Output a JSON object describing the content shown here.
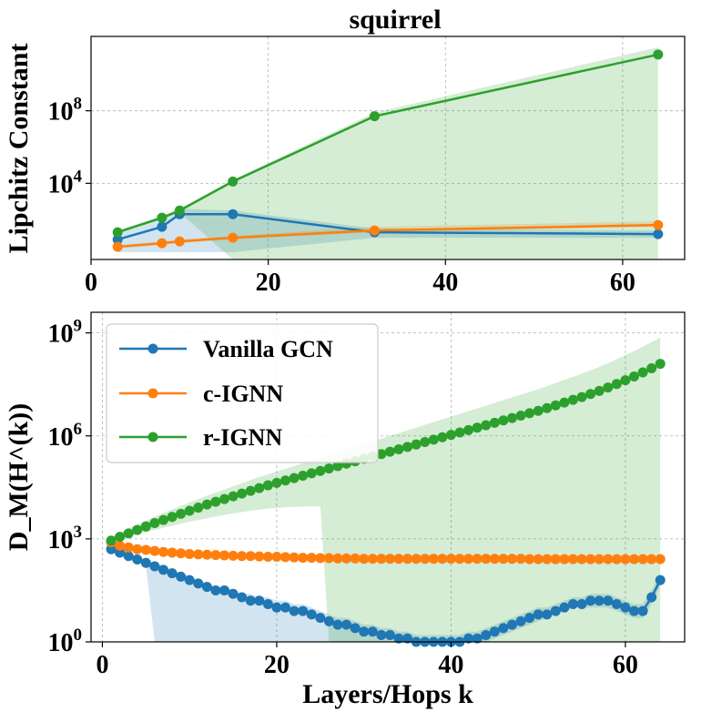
{
  "chart_data": [
    {
      "type": "line",
      "title": "squirrel",
      "xlabel": "",
      "ylabel": "Lipchitz Constant",
      "yscale": "log",
      "xlim": [
        0,
        67
      ],
      "ylim_log10": [
        -0.2,
        12.1
      ],
      "xticks": [
        0,
        20,
        40,
        60
      ],
      "xtick_labels": [
        "0",
        "20",
        "40",
        "60"
      ],
      "yticks_log10": [
        4,
        8
      ],
      "ytick_labels": [
        "10^4",
        "10^8"
      ],
      "grid": true,
      "series": [
        {
          "name": "Vanilla GCN",
          "color": "#1f77b4",
          "x": [
            3,
            8,
            10,
            16,
            32,
            64
          ],
          "log10_values": [
            0.9,
            1.6,
            2.3,
            2.3,
            1.3,
            1.2
          ],
          "band_log10": [
            [
              0.2,
              1.2
            ],
            [
              0.2,
              2.0
            ],
            [
              0.2,
              2.6
            ],
            [
              0.2,
              2.5
            ],
            [
              1.0,
              1.5
            ],
            [
              1.0,
              1.4
            ]
          ]
        },
        {
          "name": "c-IGNN",
          "color": "#ff7f0e",
          "x": [
            3,
            8,
            10,
            16,
            32,
            64
          ],
          "log10_values": [
            0.5,
            0.7,
            0.8,
            1.0,
            1.4,
            1.7
          ],
          "band_log10": [
            [
              0.4,
              0.6
            ],
            [
              0.6,
              0.8
            ],
            [
              0.7,
              0.9
            ],
            [
              0.9,
              1.1
            ],
            [
              1.3,
              1.6
            ],
            [
              1.6,
              1.9
            ]
          ]
        },
        {
          "name": "r-IGNN",
          "color": "#2ca02c",
          "x": [
            3,
            8,
            10,
            16,
            32,
            64
          ],
          "log10_values": [
            1.3,
            2.1,
            2.5,
            4.1,
            7.7,
            11.1
          ],
          "band_log10": [
            [
              1.2,
              1.4
            ],
            [
              2.0,
              2.2
            ],
            [
              2.4,
              2.6
            ],
            [
              -0.2,
              4.2
            ],
            [
              -0.2,
              7.9
            ],
            [
              -0.2,
              11.5
            ]
          ]
        }
      ]
    },
    {
      "type": "line",
      "title": "",
      "xlabel": "Layers/Hops k",
      "ylabel": "D_M(H^(k))",
      "yscale": "log",
      "xlim": [
        -1.3,
        66.8
      ],
      "ylim_log10": [
        0,
        9.6
      ],
      "xticks": [
        0,
        20,
        40,
        60
      ],
      "xtick_labels": [
        "0",
        "20",
        "40",
        "60"
      ],
      "yticks_log10": [
        0,
        3,
        6,
        9
      ],
      "ytick_labels": [
        "10^0",
        "10^3",
        "10^6",
        "10^9"
      ],
      "grid": true,
      "legend": {
        "position": "upper-left",
        "entries": [
          "Vanilla GCN",
          "c-IGNN",
          "r-IGNN"
        ]
      },
      "series": [
        {
          "name": "Vanilla GCN",
          "color": "#1f77b4",
          "x_range": [
            1,
            64
          ],
          "log10_values": [
            2.7,
            2.6,
            2.5,
            2.4,
            2.3,
            2.2,
            2.1,
            2.0,
            1.9,
            1.8,
            1.7,
            1.6,
            1.5,
            1.5,
            1.4,
            1.3,
            1.2,
            1.2,
            1.1,
            1.0,
            1.0,
            0.9,
            0.9,
            0.8,
            0.7,
            0.6,
            0.5,
            0.5,
            0.4,
            0.3,
            0.3,
            0.2,
            0.2,
            0.1,
            0.1,
            0.0,
            0.0,
            0.0,
            0.0,
            0.0,
            0.0,
            0.1,
            0.1,
            0.2,
            0.3,
            0.4,
            0.5,
            0.6,
            0.7,
            0.8,
            0.8,
            0.9,
            1.0,
            1.1,
            1.1,
            1.2,
            1.2,
            1.2,
            1.1,
            1.0,
            0.9,
            0.9,
            1.3,
            1.8
          ],
          "band_lower_log10": [
            2.6,
            2.5,
            2.4,
            2.3,
            2.2,
            0.0,
            0.0,
            0.0,
            0.0,
            0.0,
            0.0,
            0.0,
            0.0,
            0.0,
            0.0,
            0.0,
            0.0,
            0.0,
            0.0,
            0.0,
            0.0,
            0.0,
            0.0,
            0.0,
            0.0,
            0.0,
            0.0,
            0.0,
            0.0,
            0.0,
            0.0,
            0.0,
            0.0,
            0.0,
            0.0,
            0.0,
            0.0,
            0.0,
            0.0,
            0.0,
            0.0,
            0.0,
            0.0,
            0.0,
            0.1,
            0.2,
            0.3,
            0.4,
            0.5,
            0.6,
            0.7,
            0.8,
            0.9,
            1.0,
            1.0,
            1.0,
            1.0,
            1.0,
            0.9,
            0.8,
            0.7,
            0.7,
            1.1,
            1.6
          ],
          "band_upper_log10": [
            2.8,
            2.7,
            2.6,
            2.5,
            2.4,
            2.3,
            2.2,
            2.1,
            2.0,
            1.9,
            1.8,
            1.7,
            1.6,
            1.6,
            1.5,
            1.4,
            1.4,
            1.3,
            1.3,
            1.2,
            1.2,
            1.1,
            1.1,
            1.0,
            0.9,
            0.8,
            0.7,
            0.7,
            0.6,
            0.5,
            0.5,
            0.4,
            0.4,
            0.3,
            0.3,
            0.2,
            0.2,
            0.2,
            0.2,
            0.2,
            0.2,
            0.3,
            0.3,
            0.4,
            0.5,
            0.6,
            0.7,
            0.8,
            0.9,
            1.0,
            1.0,
            1.1,
            1.2,
            1.3,
            1.3,
            1.4,
            1.4,
            1.4,
            1.3,
            1.2,
            1.1,
            1.1,
            1.5,
            2.0
          ]
        },
        {
          "name": "c-IGNN",
          "color": "#ff7f0e",
          "x_range": [
            1,
            64
          ],
          "log10_values": [
            2.9,
            2.8,
            2.75,
            2.7,
            2.68,
            2.65,
            2.62,
            2.6,
            2.58,
            2.56,
            2.55,
            2.54,
            2.53,
            2.52,
            2.51,
            2.5,
            2.5,
            2.49,
            2.48,
            2.48,
            2.47,
            2.46,
            2.45,
            2.45,
            2.44,
            2.44,
            2.43,
            2.43,
            2.43,
            2.42,
            2.42,
            2.42,
            2.42,
            2.42,
            2.42,
            2.42,
            2.42,
            2.42,
            2.42,
            2.42,
            2.42,
            2.42,
            2.42,
            2.42,
            2.42,
            2.42,
            2.42,
            2.42,
            2.41,
            2.41,
            2.41,
            2.41,
            2.41,
            2.41,
            2.41,
            2.41,
            2.41,
            2.41,
            2.41,
            2.41,
            2.41,
            2.41,
            2.41,
            2.41
          ],
          "band_lower_log10": [
            2.8,
            2.7,
            2.65,
            2.6,
            2.58,
            2.55,
            2.52,
            2.5,
            2.48,
            2.46,
            2.45,
            2.44,
            2.43,
            2.42,
            2.41,
            2.4,
            2.4,
            2.39,
            2.38,
            2.38,
            2.37,
            2.36,
            2.35,
            2.35,
            2.34,
            2.34,
            2.33,
            2.33,
            2.33,
            2.32,
            2.32,
            2.32,
            2.32,
            2.32,
            2.32,
            2.32,
            2.32,
            2.32,
            2.32,
            2.32,
            2.32,
            2.32,
            2.32,
            2.32,
            2.32,
            2.32,
            2.32,
            2.32,
            2.31,
            2.31,
            2.31,
            2.31,
            2.31,
            2.31,
            2.31,
            2.31,
            2.31,
            2.31,
            2.31,
            2.31,
            2.31,
            2.31,
            2.31,
            2.31
          ],
          "band_upper_log10": [
            3.0,
            2.9,
            2.85,
            2.8,
            2.78,
            2.75,
            2.72,
            2.7,
            2.68,
            2.66,
            2.65,
            2.64,
            2.63,
            2.62,
            2.61,
            2.6,
            2.6,
            2.59,
            2.58,
            2.58,
            2.57,
            2.56,
            2.55,
            2.55,
            2.54,
            2.54,
            2.53,
            2.53,
            2.53,
            2.52,
            2.52,
            2.52,
            2.52,
            2.52,
            2.52,
            2.52,
            2.52,
            2.52,
            2.52,
            2.52,
            2.52,
            2.52,
            2.52,
            2.52,
            2.52,
            2.52,
            2.52,
            2.52,
            2.51,
            2.51,
            2.51,
            2.51,
            2.51,
            2.51,
            2.51,
            2.51,
            2.51,
            2.51,
            2.51,
            2.51,
            2.51,
            2.51,
            2.51,
            2.51
          ]
        },
        {
          "name": "r-IGNN",
          "color": "#2ca02c",
          "x_range": [
            1,
            64
          ],
          "log10_values": [
            2.95,
            3.06,
            3.16,
            3.26,
            3.36,
            3.46,
            3.55,
            3.64,
            3.73,
            3.82,
            3.91,
            4.0,
            4.08,
            4.16,
            4.24,
            4.32,
            4.4,
            4.48,
            4.56,
            4.63,
            4.7,
            4.77,
            4.84,
            4.91,
            4.98,
            5.05,
            5.12,
            5.19,
            5.26,
            5.33,
            5.4,
            5.47,
            5.54,
            5.61,
            5.68,
            5.75,
            5.82,
            5.89,
            5.96,
            6.03,
            6.1,
            6.17,
            6.24,
            6.31,
            6.38,
            6.45,
            6.52,
            6.59,
            6.66,
            6.73,
            6.81,
            6.89,
            6.97,
            7.05,
            7.13,
            7.22,
            7.31,
            7.41,
            7.51,
            7.62,
            7.73,
            7.85,
            7.97,
            8.1
          ],
          "band_lower_log10": [
            2.9,
            3.0,
            3.08,
            3.14,
            3.2,
            3.26,
            3.32,
            3.38,
            3.44,
            3.5,
            3.55,
            3.6,
            3.65,
            3.7,
            3.74,
            3.78,
            3.82,
            3.85,
            3.88,
            3.9,
            3.92,
            3.93,
            3.94,
            3.95,
            3.95,
            0.0,
            0.0,
            0.0,
            0.0,
            0.0,
            0.0,
            0.0,
            0.0,
            0.0,
            0.0,
            0.0,
            0.0,
            0.0,
            0.0,
            0.0,
            0.0,
            0.0,
            0.0,
            0.0,
            0.0,
            0.0,
            0.0,
            0.0,
            0.0,
            0.0,
            0.0,
            0.0,
            0.0,
            0.0,
            0.0,
            0.0,
            0.0,
            0.0,
            0.0,
            0.0,
            0.0,
            0.0,
            0.0,
            0.0
          ],
          "band_upper_log10": [
            3.05,
            3.18,
            3.3,
            3.42,
            3.54,
            3.65,
            3.76,
            3.86,
            3.96,
            4.06,
            4.16,
            4.26,
            4.35,
            4.44,
            4.53,
            4.62,
            4.71,
            4.8,
            4.88,
            4.96,
            5.04,
            5.12,
            5.2,
            5.28,
            5.36,
            5.44,
            5.52,
            5.6,
            5.68,
            5.76,
            5.84,
            5.92,
            6.0,
            6.08,
            6.16,
            6.24,
            6.32,
            6.4,
            6.48,
            6.56,
            6.64,
            6.72,
            6.8,
            6.88,
            6.96,
            7.04,
            7.12,
            7.2,
            7.28,
            7.36,
            7.45,
            7.54,
            7.63,
            7.72,
            7.81,
            7.91,
            8.01,
            8.12,
            8.23,
            8.35,
            8.47,
            8.6,
            8.73,
            8.86
          ]
        }
      ]
    }
  ]
}
